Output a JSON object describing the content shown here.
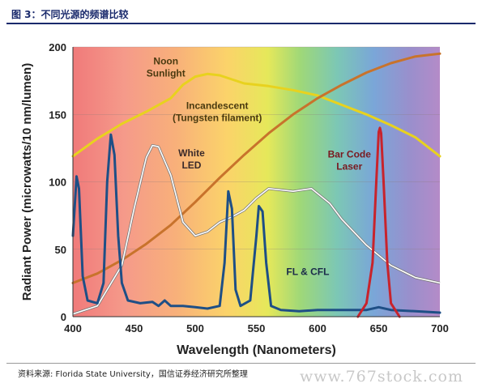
{
  "figure": {
    "title": "图 3：不同光源的频谱比较",
    "source": "资料来源: Florida State University，国信证券经济研究所整理"
  },
  "watermark": "www.767stock.com",
  "chart_data": {
    "type": "line",
    "xlabel": "Wavelength (Nanometers)",
    "ylabel": "Radiant Power (microwatts/10 nm/lumen)",
    "xlim": [
      400,
      700
    ],
    "ylim": [
      0,
      200
    ],
    "xticks": [
      400,
      450,
      500,
      550,
      600,
      650,
      700
    ],
    "yticks": [
      0,
      50,
      100,
      150,
      200
    ],
    "grid": "horizontal",
    "background": "visible spectrum gradient",
    "series": [
      {
        "name": "Noon Sunlight",
        "color": "#e8d21e",
        "x": [
          400,
          420,
          440,
          460,
          480,
          490,
          500,
          510,
          520,
          540,
          560,
          580,
          600,
          620,
          640,
          660,
          680,
          700
        ],
        "y": [
          119,
          132,
          143,
          152,
          162,
          172,
          178,
          180,
          179,
          173,
          171,
          168,
          164,
          157,
          150,
          142,
          133,
          119
        ]
      },
      {
        "name": "Incandescent (Tungsten filament)",
        "color": "#c8732c",
        "x": [
          400,
          420,
          440,
          460,
          480,
          500,
          520,
          540,
          560,
          580,
          600,
          620,
          640,
          660,
          680,
          700
        ],
        "y": [
          25,
          32,
          42,
          54,
          68,
          85,
          103,
          120,
          136,
          150,
          162,
          172,
          181,
          188,
          193,
          195
        ]
      },
      {
        "name": "White LED",
        "color": "#ffffff",
        "x": [
          400,
          420,
          440,
          450,
          460,
          465,
          470,
          480,
          490,
          500,
          510,
          520,
          530,
          540,
          550,
          560,
          570,
          580,
          595,
          610,
          620,
          640,
          660,
          680,
          700
        ],
        "y": [
          2,
          8,
          38,
          80,
          118,
          127,
          126,
          105,
          70,
          60,
          63,
          70,
          74,
          79,
          88,
          95,
          94,
          93,
          95,
          84,
          72,
          53,
          38,
          29,
          25
        ]
      },
      {
        "name": "FL & CFL",
        "color": "#1e4f86",
        "x": [
          400,
          403,
          405,
          408,
          412,
          420,
          425,
          428,
          431,
          434,
          437,
          440,
          445,
          455,
          465,
          470,
          475,
          480,
          490,
          500,
          510,
          520,
          524,
          527,
          530,
          533,
          537,
          545,
          550,
          552,
          555,
          558,
          562,
          570,
          585,
          600,
          620,
          640,
          650,
          660,
          680,
          700
        ],
        "y": [
          60,
          104,
          95,
          30,
          12,
          10,
          25,
          100,
          135,
          120,
          60,
          25,
          12,
          10,
          11,
          8,
          12,
          8,
          8,
          7,
          6,
          8,
          40,
          93,
          80,
          20,
          8,
          12,
          60,
          82,
          78,
          40,
          8,
          5,
          4,
          5,
          5,
          5,
          7,
          5,
          4,
          3
        ]
      },
      {
        "name": "Bar Code Laser",
        "color": "#c8232c",
        "x": [
          633,
          640,
          645,
          648,
          650,
          651,
          652,
          654,
          657,
          660,
          667
        ],
        "y": [
          0,
          10,
          40,
          100,
          137,
          140,
          136,
          100,
          40,
          10,
          0
        ]
      }
    ],
    "annotations": [
      {
        "lines": [
          "Noon",
          "Sunlight"
        ],
        "x": 476,
        "y": 187
      },
      {
        "lines": [
          "Incandescent",
          "(Tungsten filament)"
        ],
        "x": 518,
        "y": 154
      },
      {
        "lines": [
          "White",
          "LED"
        ],
        "x": 497,
        "y": 119
      },
      {
        "lines": [
          "Bar Code",
          "Laser"
        ],
        "x": 626,
        "y": 118
      },
      {
        "lines": [
          "FL & CFL"
        ],
        "x": 592,
        "y": 31
      }
    ]
  }
}
